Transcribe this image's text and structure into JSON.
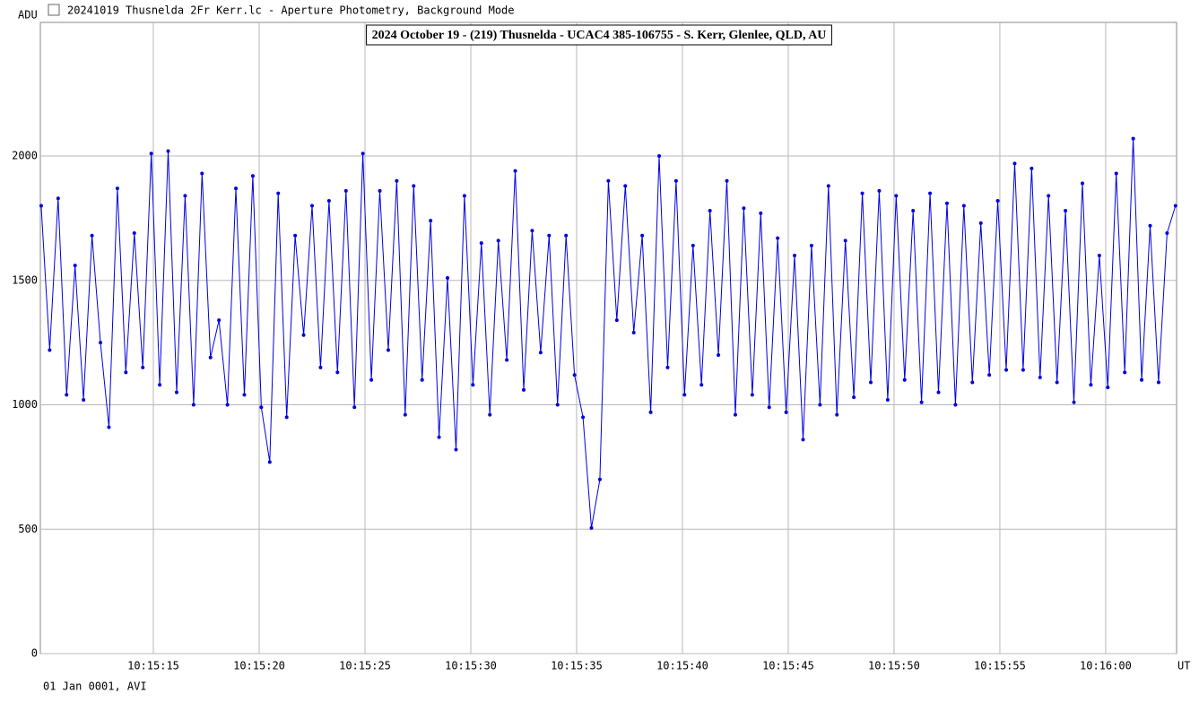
{
  "window_title": "20241019 Thusnelda 2Fr Kerr.lc - Aperture Photometry, Background Mode",
  "footer": "01 Jan 0001, AVI",
  "chart_data": {
    "type": "line",
    "title": "2024 October 19 - (219) Thusnelda - UCAC4 385-106755 - S. Kerr, Glenlee, QLD, AU",
    "y_label": "ADU",
    "x_label": "UT",
    "grid": true,
    "xlim": [
      9.66,
      63.35
    ],
    "ylim": [
      0,
      2537
    ],
    "xticks": [
      {
        "value": 15,
        "label": "10:15:15"
      },
      {
        "value": 20,
        "label": "10:15:20"
      },
      {
        "value": 25,
        "label": "10:15:25"
      },
      {
        "value": 30,
        "label": "10:15:30"
      },
      {
        "value": 35,
        "label": "10:15:35"
      },
      {
        "value": 40,
        "label": "10:15:40"
      },
      {
        "value": 45,
        "label": "10:15:45"
      },
      {
        "value": 50,
        "label": "10:15:50"
      },
      {
        "value": 55,
        "label": "10:15:55"
      },
      {
        "value": 60,
        "label": "10:16:00"
      }
    ],
    "yticks": [
      0,
      500,
      1000,
      1500,
      2000
    ],
    "x": [
      9.7,
      10.1,
      10.5,
      10.9,
      11.3,
      11.7,
      12.1,
      12.5,
      12.9,
      13.3,
      13.7,
      14.1,
      14.5,
      14.9,
      15.3,
      15.7,
      16.1,
      16.5,
      16.9,
      17.3,
      17.7,
      18.1,
      18.5,
      18.9,
      19.3,
      19.7,
      20.1,
      20.5,
      20.9,
      21.3,
      21.7,
      22.1,
      22.5,
      22.9,
      23.3,
      23.7,
      24.1,
      24.5,
      24.9,
      25.3,
      25.7,
      26.1,
      26.5,
      26.9,
      27.3,
      27.7,
      28.1,
      28.5,
      28.9,
      29.3,
      29.7,
      30.1,
      30.5,
      30.9,
      31.3,
      31.7,
      32.1,
      32.5,
      32.9,
      33.3,
      33.7,
      34.1,
      34.5,
      34.9,
      35.3,
      35.7,
      36.1,
      36.5,
      36.9,
      37.3,
      37.7,
      38.1,
      38.5,
      38.9,
      39.3,
      39.7,
      40.1,
      40.5,
      40.9,
      41.3,
      41.7,
      42.1,
      42.5,
      42.9,
      43.3,
      43.7,
      44.1,
      44.5,
      44.9,
      45.3,
      45.7,
      46.1,
      46.5,
      46.9,
      47.3,
      47.7,
      48.1,
      48.5,
      48.9,
      49.3,
      49.7,
      50.1,
      50.5,
      50.9,
      51.3,
      51.7,
      52.1,
      52.5,
      52.9,
      53.3,
      53.7,
      54.1,
      54.5,
      54.9,
      55.3,
      55.7,
      56.1,
      56.5,
      56.9,
      57.3,
      57.7,
      58.1,
      58.5,
      58.9,
      59.3,
      59.7,
      60.1,
      60.5,
      60.9,
      61.3,
      61.7,
      62.1,
      62.5,
      62.9,
      63.3
    ],
    "series": [
      {
        "name": "ADU",
        "color": "#0000e0",
        "values": [
          1800,
          1220,
          1830,
          1040,
          1560,
          1020,
          1680,
          1250,
          910,
          1870,
          1130,
          1690,
          1150,
          2010,
          1080,
          2020,
          1050,
          1840,
          1000,
          1930,
          1190,
          1340,
          1000,
          1870,
          1040,
          1920,
          990,
          770,
          1850,
          950,
          1680,
          1280,
          1800,
          1150,
          1820,
          1130,
          1860,
          990,
          2010,
          1100,
          1860,
          1220,
          1900,
          960,
          1880,
          1100,
          1740,
          870,
          1510,
          820,
          1840,
          1080,
          1650,
          960,
          1660,
          1180,
          1940,
          1060,
          1700,
          1210,
          1680,
          1000,
          1680,
          1120,
          950,
          505,
          700,
          1900,
          1340,
          1880,
          1290,
          1680,
          970,
          2000,
          1150,
          1900,
          1040,
          1640,
          1080,
          1780,
          1200,
          1900,
          960,
          1790,
          1040,
          1770,
          990,
          1670,
          970,
          1600,
          860,
          1640,
          1000,
          1880,
          960,
          1660,
          1030,
          1850,
          1090,
          1860,
          1020,
          1840,
          1100,
          1780,
          1010,
          1850,
          1050,
          1810,
          1000,
          1800,
          1090,
          1730,
          1120,
          1820,
          1140,
          1970,
          1140,
          1950,
          1110,
          1840,
          1090,
          1780,
          1010,
          1890,
          1080,
          1600,
          1070,
          1930,
          1130,
          2070,
          1100,
          1720,
          1090,
          1690,
          1800
        ]
      }
    ]
  }
}
